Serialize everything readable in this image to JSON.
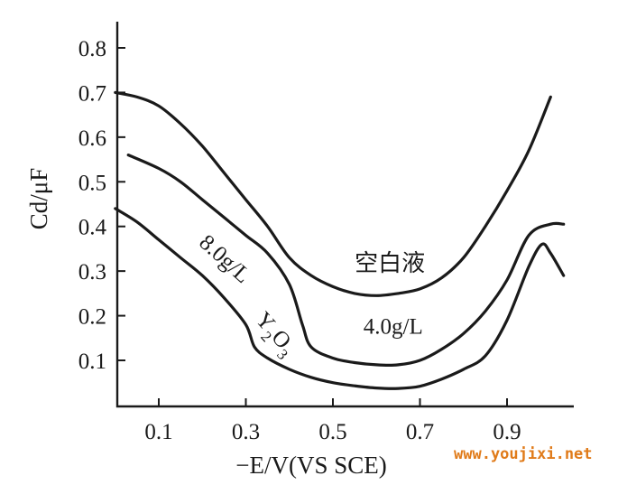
{
  "chart_data": {
    "type": "line",
    "title": "",
    "xlabel": "−E/V(VS SCE)",
    "ylabel": "Cd/μF",
    "xlim": [
      0.0,
      1.03
    ],
    "ylim": [
      0.0,
      0.85
    ],
    "x_ticks": [
      0.1,
      0.3,
      0.5,
      0.7,
      0.9
    ],
    "x_tick_labels": [
      "0.1",
      "0.3",
      "0.5",
      "0.7",
      "0.9"
    ],
    "y_ticks": [
      0.1,
      0.2,
      0.3,
      0.4,
      0.5,
      0.6,
      0.7,
      0.8
    ],
    "y_tick_labels": [
      "0.1",
      "0.2",
      "0.3",
      "0.4",
      "0.5",
      "0.6",
      "0.7",
      "0.8"
    ],
    "grid": false,
    "legend": "none",
    "series": [
      {
        "name": "空白液",
        "x": [
          0.0,
          0.05,
          0.1,
          0.15,
          0.2,
          0.25,
          0.3,
          0.35,
          0.4,
          0.45,
          0.5,
          0.55,
          0.6,
          0.65,
          0.7,
          0.75,
          0.8,
          0.85,
          0.9,
          0.95,
          1.0
        ],
        "y": [
          0.7,
          0.69,
          0.67,
          0.63,
          0.58,
          0.52,
          0.46,
          0.4,
          0.33,
          0.29,
          0.265,
          0.25,
          0.245,
          0.25,
          0.26,
          0.285,
          0.33,
          0.4,
          0.48,
          0.57,
          0.69
        ]
      },
      {
        "name": "4.0g/L",
        "x": [
          0.03,
          0.1,
          0.15,
          0.2,
          0.25,
          0.3,
          0.35,
          0.4,
          0.43,
          0.45,
          0.5,
          0.55,
          0.6,
          0.65,
          0.7,
          0.75,
          0.8,
          0.85,
          0.9,
          0.95,
          1.0,
          1.03
        ],
        "y": [
          0.56,
          0.53,
          0.5,
          0.46,
          0.42,
          0.38,
          0.34,
          0.27,
          0.18,
          0.13,
          0.105,
          0.095,
          0.09,
          0.09,
          0.1,
          0.125,
          0.16,
          0.21,
          0.28,
          0.38,
          0.405,
          0.405
        ]
      },
      {
        "name": "8.0g/L",
        "x": [
          0.0,
          0.05,
          0.1,
          0.15,
          0.2,
          0.25,
          0.3,
          0.32,
          0.35,
          0.4,
          0.45,
          0.5,
          0.55,
          0.6,
          0.65,
          0.7,
          0.75,
          0.8,
          0.85,
          0.9,
          0.95,
          0.98,
          1.0,
          1.03
        ],
        "y": [
          0.44,
          0.41,
          0.37,
          0.33,
          0.29,
          0.24,
          0.18,
          0.13,
          0.105,
          0.08,
          0.062,
          0.05,
          0.043,
          0.038,
          0.037,
          0.042,
          0.058,
          0.08,
          0.11,
          0.19,
          0.31,
          0.36,
          0.34,
          0.29
        ]
      }
    ],
    "annotations": [
      {
        "text": "空白液",
        "x": 0.55,
        "y": 0.3
      },
      {
        "text": "4.0g/L",
        "x": 0.57,
        "y": 0.16
      },
      {
        "text": "8.0g/L",
        "x": 0.19,
        "y": 0.36,
        "rotation": 42
      },
      {
        "text": "Y",
        "sub1": "2",
        "mid": "O",
        "sub2": "3",
        "x": 0.32,
        "y": 0.19,
        "rotation": 48
      }
    ]
  },
  "watermark": {
    "text": "www.youjixi.net",
    "color": "#e07b1a"
  }
}
